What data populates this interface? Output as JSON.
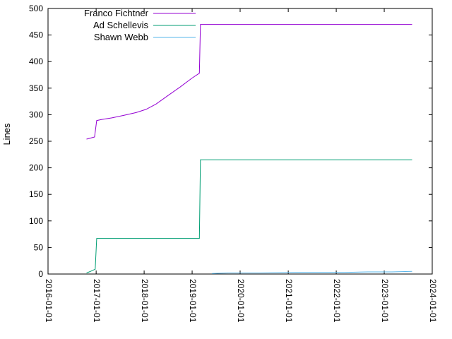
{
  "chart_data": {
    "type": "line",
    "title": "",
    "xlabel": "",
    "ylabel": "Lines",
    "ylim": [
      0,
      500
    ],
    "xlim": [
      "2016-01-01",
      "2024-01-01"
    ],
    "y_ticks": [
      0,
      50,
      100,
      150,
      200,
      250,
      300,
      350,
      400,
      450,
      500
    ],
    "x_ticks": [
      "2016-01-01",
      "2017-01-01",
      "2018-01-01",
      "2019-01-01",
      "2020-01-01",
      "2021-01-01",
      "2022-01-01",
      "2023-01-01",
      "2024-01-01"
    ],
    "grid": false,
    "legend_position": "top-left-inside",
    "background_color": "#ffffff",
    "axis_color": "#000000",
    "text_color": "#000000",
    "series": [
      {
        "name": "Franco Fichtner",
        "color": "#9400d3",
        "points": [
          [
            "2016-10-20",
            254
          ],
          [
            "2016-12-20",
            258
          ],
          [
            "2017-01-05",
            289
          ],
          [
            "2017-02-10",
            291
          ],
          [
            "2017-05-01",
            294
          ],
          [
            "2017-08-01",
            299
          ],
          [
            "2017-11-01",
            304
          ],
          [
            "2018-01-15",
            310
          ],
          [
            "2018-04-01",
            320
          ],
          [
            "2018-07-01",
            336
          ],
          [
            "2018-10-01",
            352
          ],
          [
            "2019-01-01",
            369
          ],
          [
            "2019-02-25",
            378
          ],
          [
            "2019-03-05",
            470
          ],
          [
            "2023-08-01",
            470
          ]
        ]
      },
      {
        "name": "Ad Schellevis",
        "color": "#009e73",
        "points": [
          [
            "2016-10-20",
            2
          ],
          [
            "2016-11-20",
            5
          ],
          [
            "2016-12-25",
            9
          ],
          [
            "2017-01-05",
            67
          ],
          [
            "2019-02-25",
            67
          ],
          [
            "2019-03-05",
            215
          ],
          [
            "2023-08-01",
            215
          ]
        ]
      },
      {
        "name": "Shawn Webb",
        "color": "#56b4e9",
        "points": [
          [
            "2019-06-01",
            1
          ],
          [
            "2019-10-01",
            2
          ],
          [
            "2020-06-01",
            2
          ],
          [
            "2021-03-01",
            3
          ],
          [
            "2022-03-01",
            3
          ],
          [
            "2022-09-01",
            4
          ],
          [
            "2023-03-01",
            4
          ],
          [
            "2023-08-01",
            5
          ]
        ]
      }
    ]
  }
}
